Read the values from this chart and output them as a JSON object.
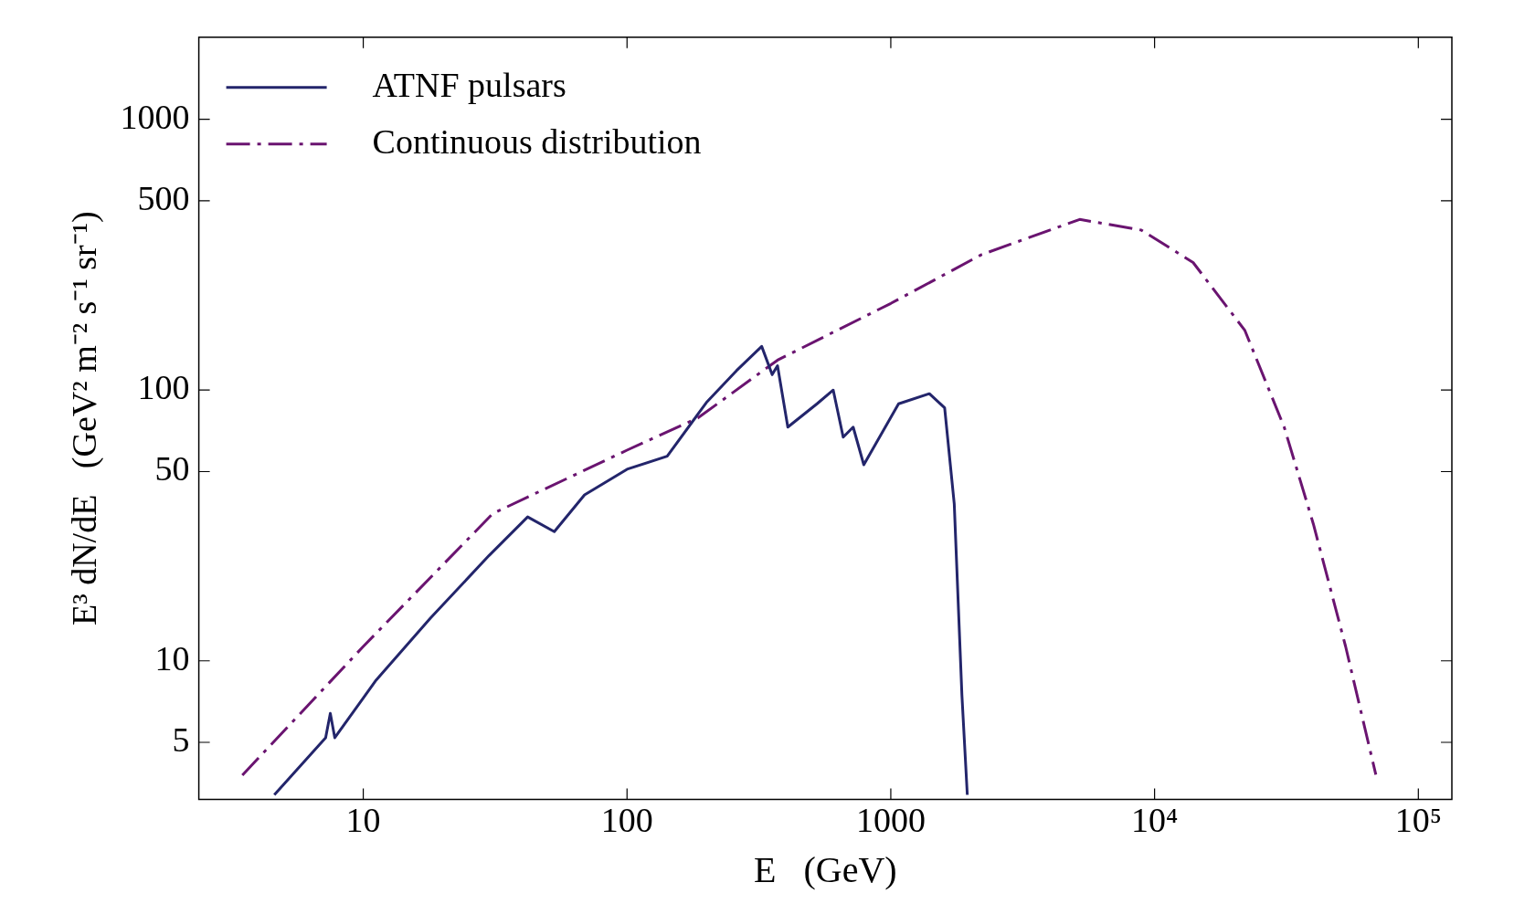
{
  "chart_data": {
    "type": "line",
    "xlabel": "E   (GeV)",
    "ylabel": "E³ dN/dE   (GeV² m⁻² s⁻¹ sr⁻¹)",
    "log": "xy",
    "legend": "top left",
    "grid": false,
    "marker": "none",
    "xlim": [
      2.38,
      134000
    ],
    "ylim": [
      3.08,
      2010
    ],
    "xticks": [
      10,
      100,
      1000,
      {
        "value": 10000,
        "label": "10⁴"
      },
      {
        "value": 100000,
        "label": "10⁵"
      }
    ],
    "yticks": [
      5,
      10,
      50,
      100,
      500,
      1000
    ],
    "series": [
      {
        "name": "ATNF pulsars",
        "color": "#23256b",
        "line_style": "solid",
        "x": [
          4.6,
          7.2,
          7.5,
          7.8,
          11.2,
          18,
          30,
          42,
          53,
          69,
          100,
          142,
          200,
          260,
          324,
          355,
          372,
          407,
          525,
          605,
          660,
          720,
          790,
          1070,
          1400,
          1600,
          1740,
          1860,
          1950
        ],
        "values": [
          3.2,
          5.2,
          6.4,
          5.2,
          8.5,
          14.4,
          24.5,
          34,
          30,
          41,
          51,
          57,
          90,
          118,
          145,
          114,
          123,
          73,
          89,
          100,
          67,
          73,
          53,
          89,
          97,
          86,
          38,
          7.5,
          3.2
        ]
      },
      {
        "name": "Continuous distribution",
        "color": "#6a1470",
        "line_style": "dashed",
        "x": [
          3.48,
          10,
          31,
          100,
          186,
          372,
          1000,
          2200,
          5200,
          8900,
          14000,
          22000,
          31000,
          40000,
          53000,
          69000
        ],
        "values": [
          3.78,
          11.3,
          35,
          60,
          79,
          129,
          209,
          316,
          427,
          390,
          296,
          166,
          73,
          32,
          11.3,
          3.8
        ]
      }
    ]
  }
}
